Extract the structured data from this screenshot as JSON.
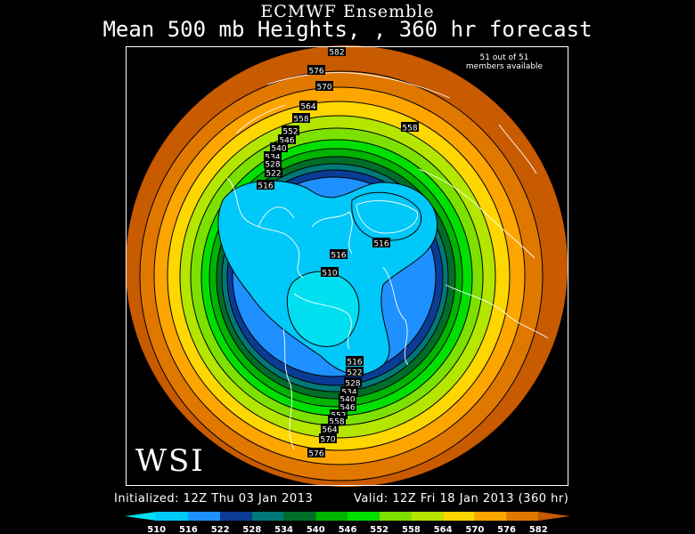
{
  "title": "ECMWF Ensemble",
  "subtitle": "Mean 500 mb Heights, , 360 hr forecast",
  "members_line1": "51 out of 51",
  "members_line2": "members available",
  "logo": "WSI",
  "initialized": "Initialized: 12Z Thu 03 Jan 2013",
  "valid": "Valid: 12Z Fri 18 Jan 2013 (360 hr)",
  "colors": {
    "background": "#000000",
    "contour": "#000000",
    "coastline": "#ffffff",
    "scale": [
      "#00e0f0",
      "#00c8f8",
      "#1e90ff",
      "#0a3c96",
      "#007878",
      "#006e28",
      "#00b400",
      "#00e000",
      "#7ce100",
      "#b4e600",
      "#ffd700",
      "#ffa500",
      "#e07800",
      "#c85a00"
    ]
  },
  "scale_labels": [
    "510",
    "516",
    "522",
    "528",
    "534",
    "540",
    "546",
    "552",
    "558",
    "564",
    "570",
    "576",
    "582"
  ],
  "contour_labels": [
    {
      "text": "582"
    },
    {
      "text": "576"
    },
    {
      "text": "570"
    },
    {
      "text": "564"
    },
    {
      "text": "558"
    },
    {
      "text": "552"
    },
    {
      "text": "546"
    },
    {
      "text": "540"
    },
    {
      "text": "534"
    },
    {
      "text": "528"
    },
    {
      "text": "522"
    },
    {
      "text": "516"
    },
    {
      "text": "558"
    },
    {
      "text": "516"
    },
    {
      "text": "516"
    },
    {
      "text": "510"
    },
    {
      "text": "516"
    },
    {
      "text": "522"
    },
    {
      "text": "528"
    },
    {
      "text": "534"
    },
    {
      "text": "540"
    },
    {
      "text": "546"
    },
    {
      "text": "552"
    },
    {
      "text": "558"
    },
    {
      "text": "564"
    },
    {
      "text": "570"
    },
    {
      "text": "576"
    }
  ]
}
